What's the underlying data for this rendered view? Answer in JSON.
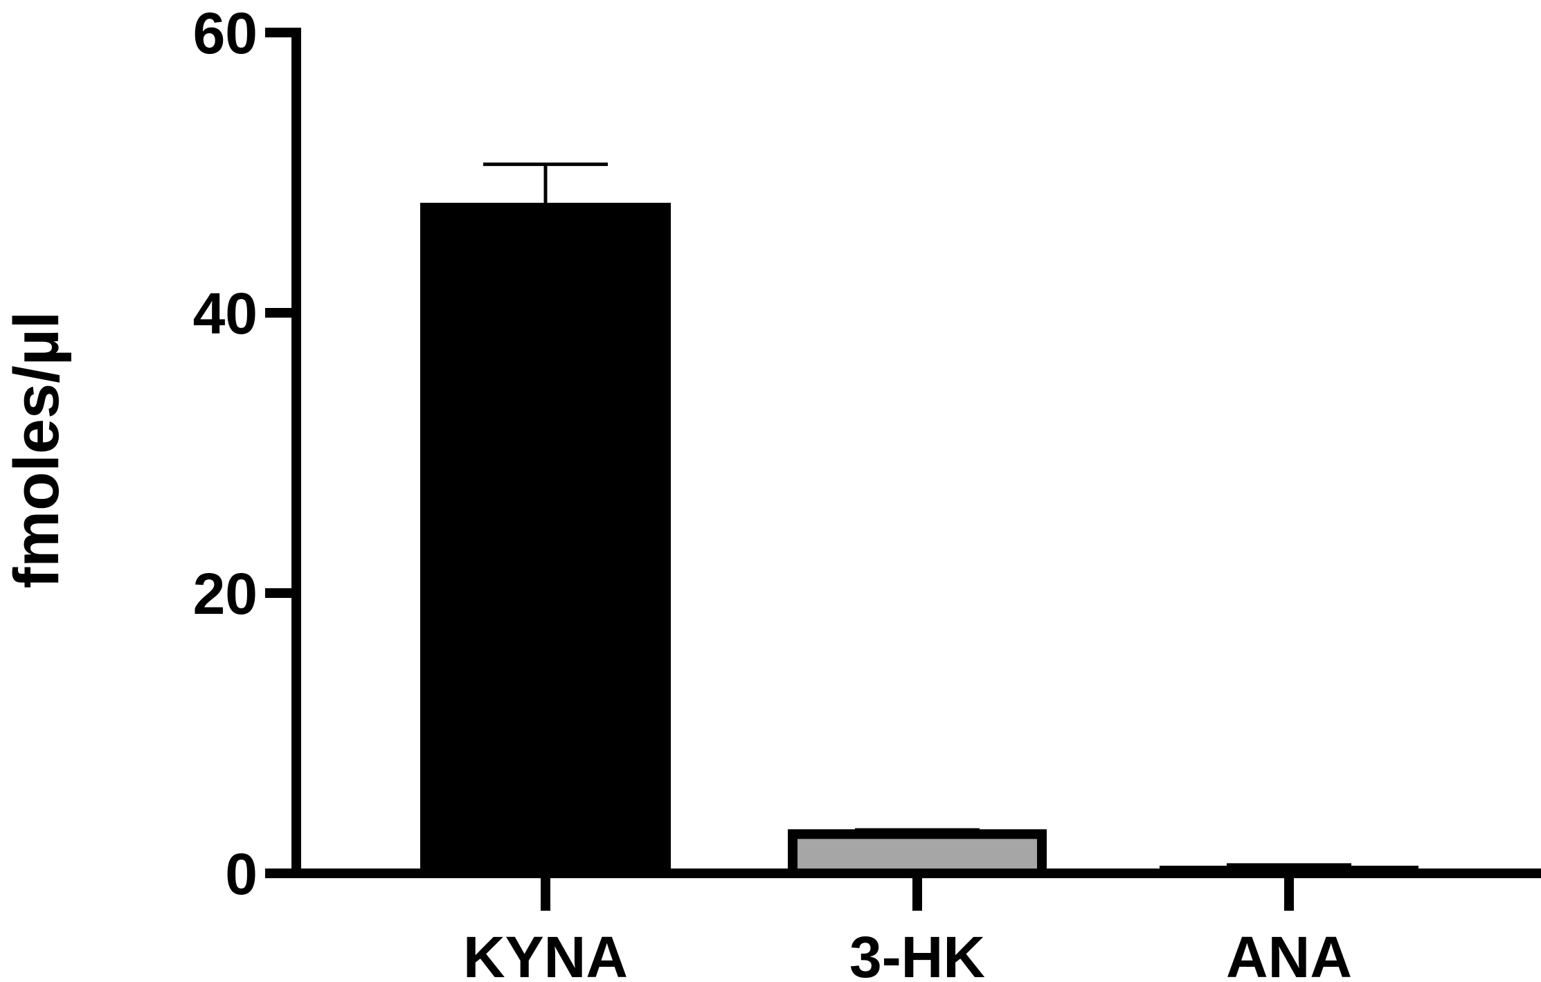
{
  "chart_data": {
    "type": "bar",
    "title": "",
    "xlabel": "",
    "ylabel": "fmoles/µl",
    "ylim": [
      0,
      60
    ],
    "yticks": [
      0,
      20,
      40,
      60
    ],
    "grid": false,
    "legend": "none",
    "categories": [
      "KYNA",
      "3-HK",
      "ANA"
    ],
    "values": [
      47.8,
      2.8,
      0.2
    ],
    "errors": [
      2.8,
      0.3,
      0.4
    ],
    "bar_colors": [
      "#000000",
      "#a6a6a6",
      "#ffffff"
    ],
    "axis_color": "#000000"
  }
}
